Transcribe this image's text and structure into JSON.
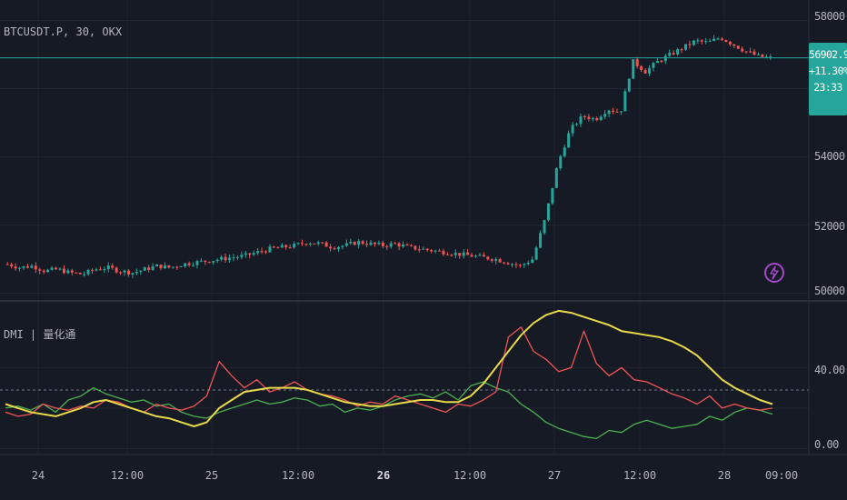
{
  "header": {
    "symbol_info": "BTCUSDT.P, 30, OKX",
    "indicator_name": "DMI | 量化通"
  },
  "price_axis": {
    "labels": [
      "58000.0",
      "54000.0",
      "52000.0",
      "50000.0"
    ],
    "current_price": "56902.9",
    "change_pct": "+11.30%",
    "countdown": "23:33"
  },
  "indicator_axis": {
    "labels": [
      "40.00",
      "0.00"
    ]
  },
  "time_axis": {
    "labels": [
      "24",
      "12:00",
      "25",
      "12:00",
      "26",
      "12:00",
      "27",
      "12:00",
      "28",
      "09:00"
    ],
    "bold_labels": [
      "26"
    ]
  },
  "icons": {
    "alert": "lightning-bolt-icon"
  },
  "colors": {
    "background": "#161a25",
    "up": "#26a69a",
    "down": "#ef5350",
    "di_plus": "#4caf50",
    "di_minus": "#f05454",
    "adx": "#e8d94a",
    "price_line": "#26a69a"
  },
  "chart_data": {
    "type": "line",
    "price_ylim": [
      49800,
      58600
    ],
    "indicator_ylim": [
      -2,
      72
    ],
    "price_path": [
      50850,
      50750,
      50800,
      50650,
      50700,
      50600,
      50550,
      50700,
      50750,
      50650,
      50600,
      50700,
      50800,
      50750,
      50850,
      50900,
      50950,
      51000,
      51050,
      51100,
      51200,
      51300,
      51350,
      51400,
      51500,
      51450,
      51350,
      51400,
      51500,
      51450,
      51400,
      51450,
      51350,
      51300,
      51250,
      51200,
      51150,
      51100,
      51050,
      51000,
      50900,
      50800,
      51000,
      52200,
      53800,
      54800,
      55200,
      55100,
      55400,
      55300,
      56800,
      56500,
      56800,
      57000,
      57200,
      57400,
      57350,
      57500,
      57300,
      57100,
      56950,
      56900
    ],
    "di_plus": [
      20,
      21,
      19,
      22,
      18,
      24,
      26,
      30,
      27,
      25,
      23,
      24,
      21,
      22,
      18,
      16,
      15,
      18,
      20,
      22,
      24,
      22,
      23,
      25,
      24,
      21,
      22,
      18,
      20,
      19,
      21,
      24,
      26,
      27,
      25,
      28,
      24,
      31,
      33,
      30,
      28,
      22,
      18,
      13,
      10,
      8,
      6,
      5,
      9,
      8,
      12,
      14,
      12,
      10,
      11,
      12,
      16,
      14,
      18,
      20,
      19,
      17
    ],
    "di_minus": [
      18,
      16,
      17,
      22,
      20,
      19,
      21,
      20,
      24,
      23,
      20,
      18,
      22,
      20,
      19,
      21,
      26,
      43,
      36,
      30,
      34,
      28,
      30,
      33,
      29,
      27,
      26,
      24,
      21,
      23,
      22,
      26,
      24,
      22,
      20,
      18,
      22,
      21,
      24,
      28,
      55,
      60,
      48,
      44,
      38,
      40,
      58,
      42,
      36,
      40,
      34,
      33,
      30,
      27,
      25,
      22,
      26,
      20,
      22,
      20,
      19,
      20
    ],
    "adx": [
      22,
      20,
      18,
      17,
      16,
      18,
      20,
      23,
      24,
      22,
      20,
      18,
      16,
      15,
      13,
      11,
      13,
      20,
      24,
      28,
      29,
      30,
      30,
      30,
      29,
      27,
      25,
      23,
      22,
      21,
      21,
      22,
      23,
      24,
      24,
      23,
      23,
      26,
      32,
      40,
      48,
      56,
      62,
      66,
      68,
      67,
      65,
      63,
      61,
      58,
      57,
      56,
      55,
      53,
      50,
      46,
      40,
      34,
      30,
      27,
      24,
      22
    ]
  }
}
